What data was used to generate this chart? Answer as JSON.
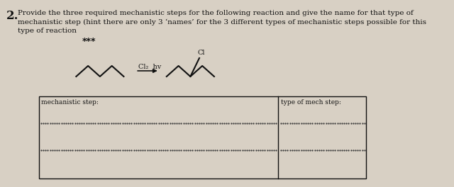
{
  "background_color": "#d8d0c4",
  "question_number": "2.",
  "question_text": "Provide the three required mechanistic steps for the following reaction and give the name for that type of\nmechanistic step (hint there are only 3 ‘names’ for the 3 different types of mechanistic steps possible for this\ntype of reaction",
  "reaction_label": "Cl₂  hv",
  "product_label": "Cl",
  "box_label_left": "mechanistic step:",
  "box_label_right": "type of mech step:",
  "dotted_line_color": "#333333",
  "box_color": "#333333",
  "text_color": "#111111",
  "font_size_question": 7.5,
  "font_size_label": 7.0,
  "font_size_box": 6.5
}
